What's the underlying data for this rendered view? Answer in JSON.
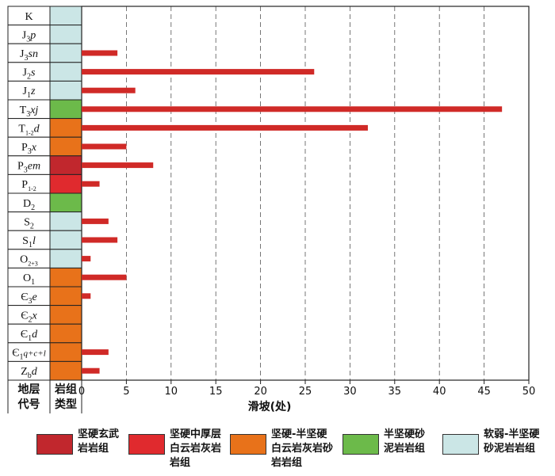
{
  "chart_data": {
    "type": "bar",
    "orientation": "horizontal",
    "categories": [
      "K",
      "J3p",
      "J3sn",
      "J2s",
      "J1z",
      "T3xj",
      "T1-2d",
      "P3x",
      "P3em",
      "P1-2",
      "D2",
      "S2",
      "S1l",
      "O2+3",
      "O1",
      "Є3e",
      "Є2x",
      "Є1d",
      "Є1q+c+l",
      "Zbd"
    ],
    "category_labels": [
      {
        "base": "K",
        "sub": "",
        "post": ""
      },
      {
        "base": "J",
        "sub": "3",
        "post": "p"
      },
      {
        "base": "J",
        "sub": "3",
        "post": "sn"
      },
      {
        "base": "J",
        "sub": "2",
        "post": "s"
      },
      {
        "base": "J",
        "sub": "1",
        "post": "z"
      },
      {
        "base": "T",
        "sub": "3",
        "post": "xj"
      },
      {
        "base": "T",
        "sub": "1-2",
        "post": "d"
      },
      {
        "base": "P",
        "sub": "3",
        "post": "x"
      },
      {
        "base": "P",
        "sub": "3",
        "post": "em"
      },
      {
        "base": "P",
        "sub": "1-2",
        "post": ""
      },
      {
        "base": "D",
        "sub": "2",
        "post": ""
      },
      {
        "base": "S",
        "sub": "2",
        "post": ""
      },
      {
        "base": "S",
        "sub": "1",
        "post": "l"
      },
      {
        "base": "O",
        "sub": "2+3",
        "post": ""
      },
      {
        "base": "O",
        "sub": "1",
        "post": ""
      },
      {
        "base": "Є",
        "sub": "3",
        "post": "e"
      },
      {
        "base": "Є",
        "sub": "2",
        "post": "x"
      },
      {
        "base": "Є",
        "sub": "1",
        "post": "d"
      },
      {
        "base": "Є",
        "sub": "1",
        "post": "q+c+l"
      },
      {
        "base": "Z",
        "sub": "b",
        "post": "d"
      }
    ],
    "values": [
      0,
      0,
      4,
      26,
      6,
      47,
      32,
      5,
      8,
      2,
      0,
      3,
      4,
      1,
      5,
      1,
      0,
      0,
      3,
      2
    ],
    "rock_type_index": [
      4,
      4,
      4,
      4,
      4,
      3,
      2,
      2,
      0,
      1,
      3,
      4,
      4,
      4,
      2,
      2,
      2,
      2,
      2,
      2
    ],
    "bar_color": "#d02a27",
    "xlabel": "滑坡(处)",
    "xlim": [
      0,
      50
    ],
    "xticks": [
      0,
      5,
      10,
      15,
      20,
      25,
      30,
      35,
      40,
      45,
      50
    ],
    "grid": "vertical dashed",
    "col1_header": [
      "地层",
      "代号"
    ],
    "col2_header": [
      "岩组",
      "类型"
    ]
  },
  "legend": [
    {
      "color": "#c1272d",
      "label": "坚硬玄武\n岩岩组"
    },
    {
      "color": "#e02a2e",
      "label": "坚硬中厚层\n白云岩灰岩\n岩组"
    },
    {
      "color": "#e8721a",
      "label": "坚硬-半坚硬\n白云岩灰岩砂\n岩岩组"
    },
    {
      "color": "#6cba4a",
      "label": "半坚硬砂\n泥岩岩组"
    },
    {
      "color": "#cbe6e6",
      "label": "软弱-半坚硬\n砂泥岩岩组"
    }
  ]
}
